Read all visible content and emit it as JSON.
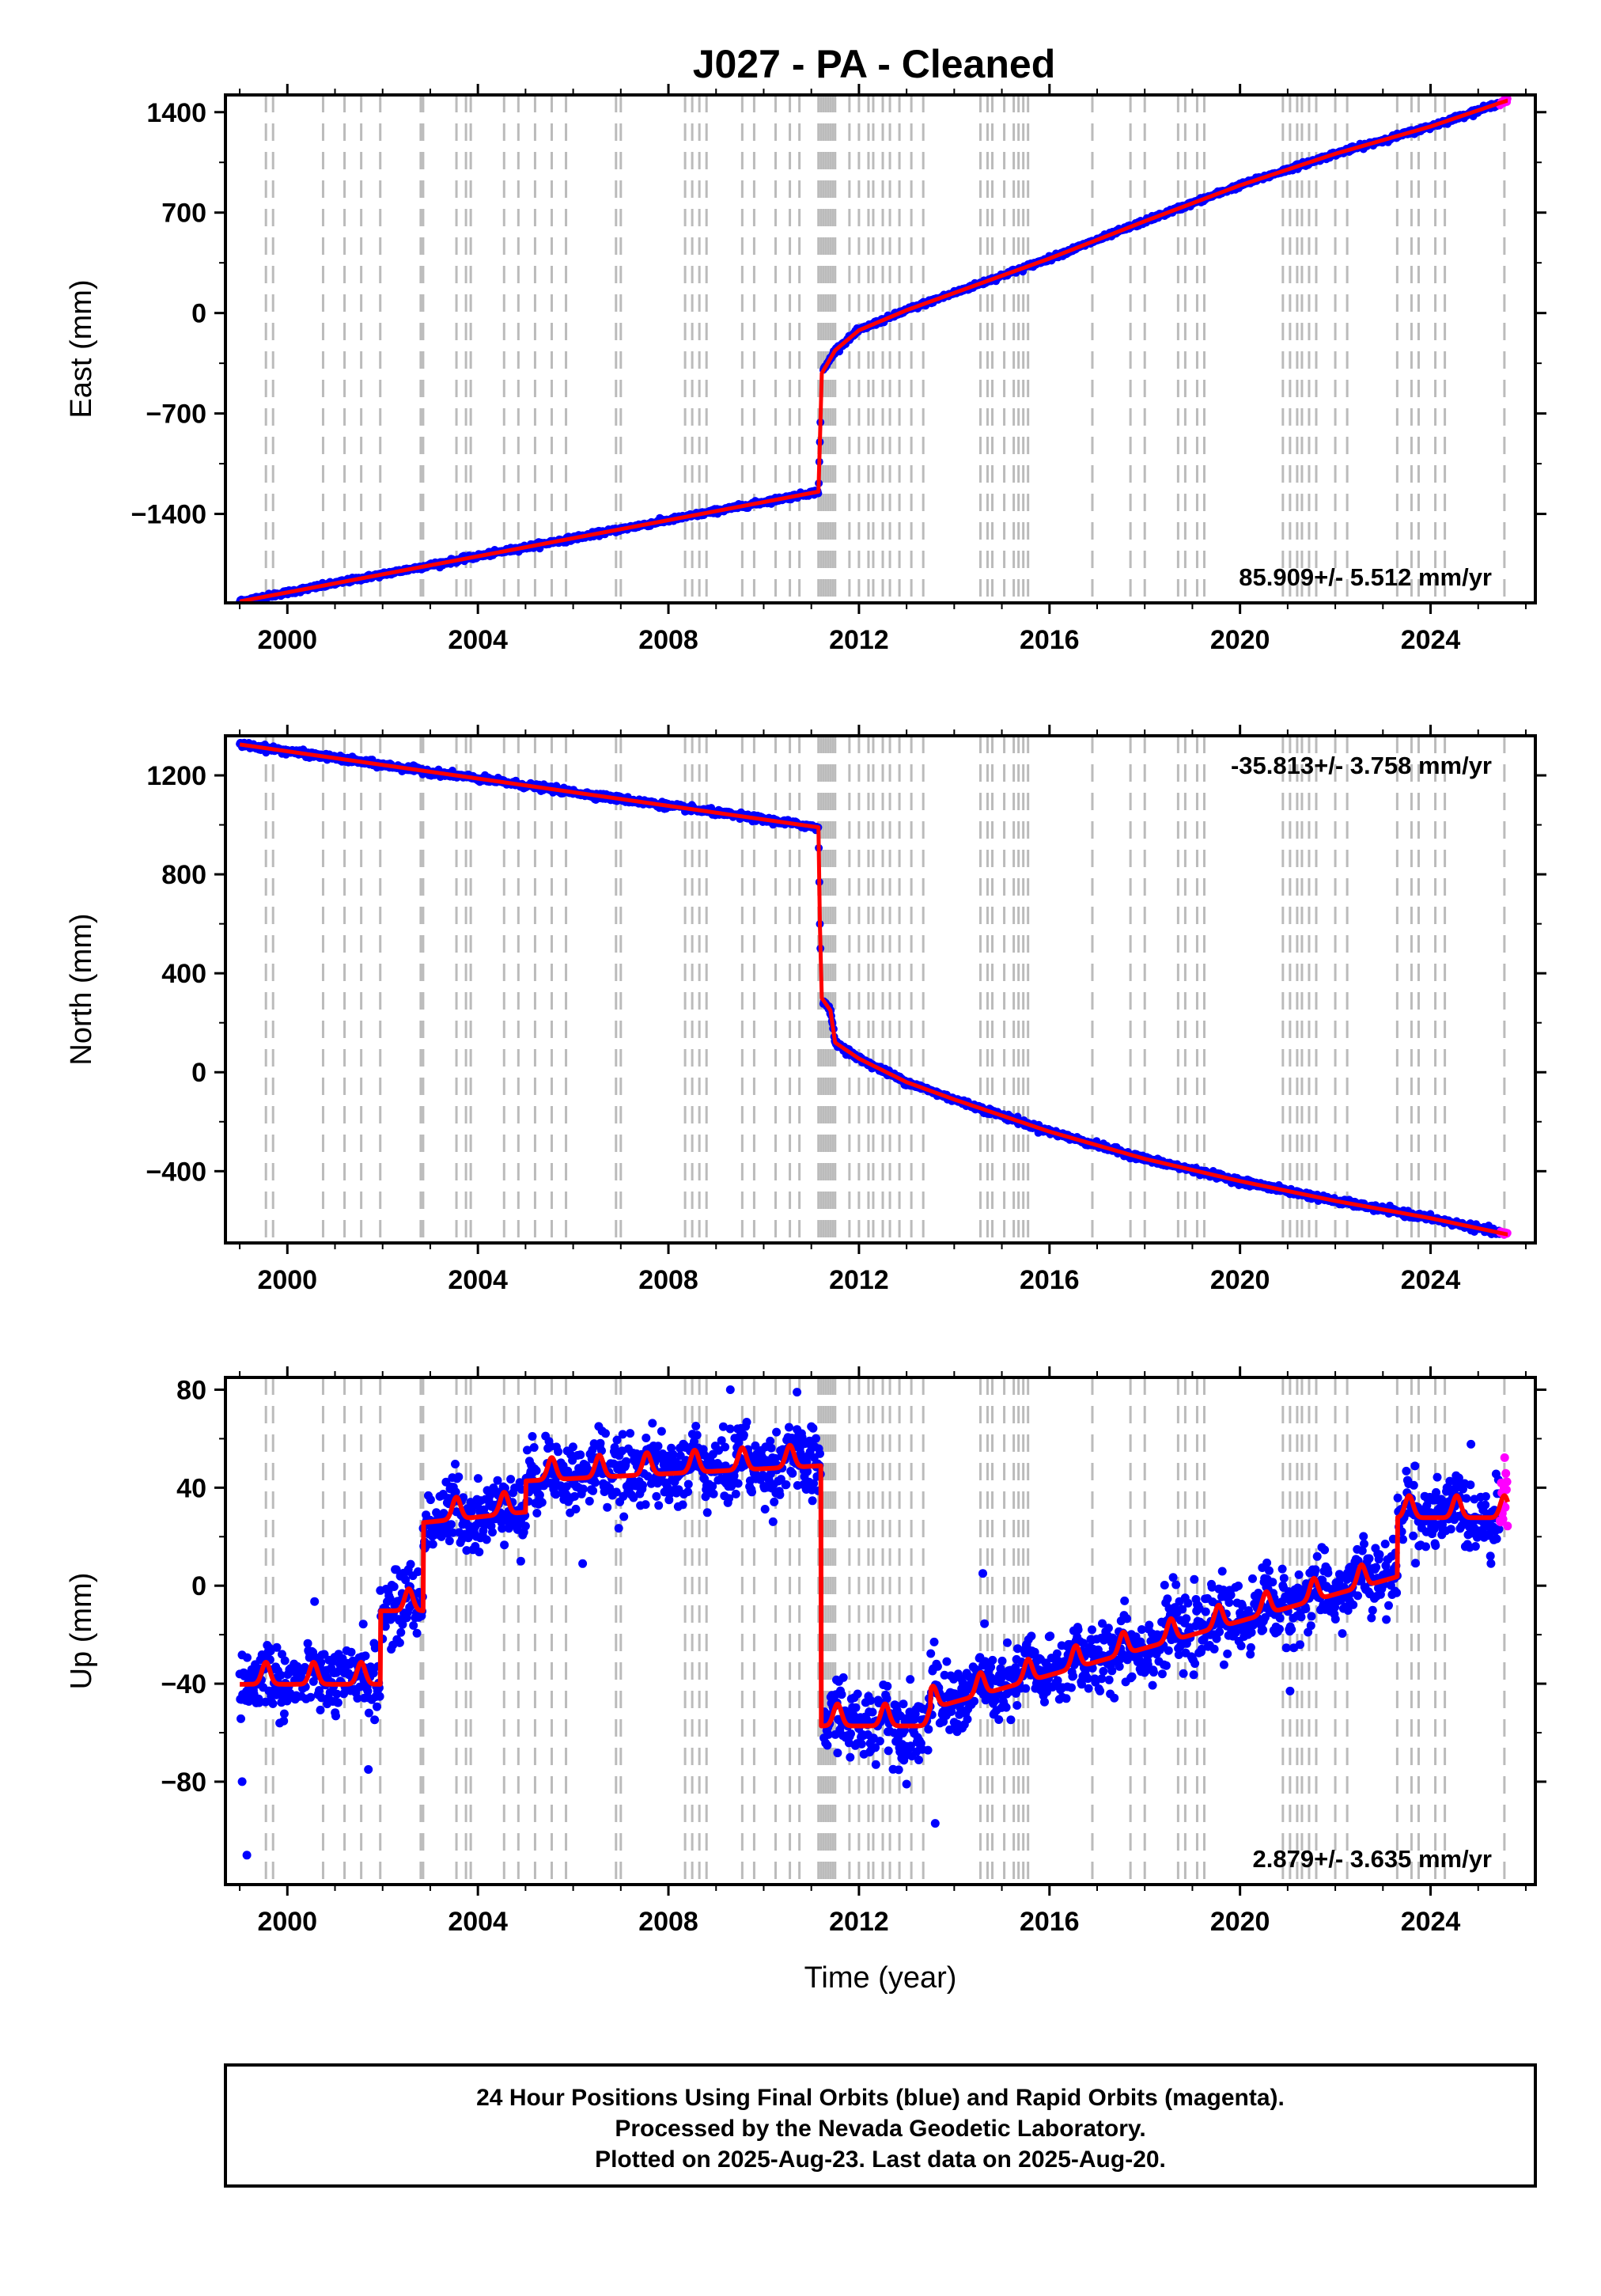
{
  "title": "J027  - PA - Cleaned",
  "colors": {
    "final_orbits": "#0000ff",
    "rapid_orbits": "#ff00ff",
    "model_fit": "#ff0000",
    "event_lines": "#bbbbbb",
    "frame": "#000000"
  },
  "chart_data": [
    {
      "type": "scatter",
      "panel": "east",
      "ylabel": "East (mm)",
      "xlabel": "",
      "xlim": [
        1998.7,
        2026.2
      ],
      "ylim": [
        -2020,
        1520
      ],
      "yticks": [
        1400,
        700,
        0,
        -700,
        -1400
      ],
      "ytick_labels": [
        "1400",
        "700",
        "0",
        "−700",
        "−1400"
      ],
      "xticks": [
        2000,
        2004,
        2008,
        2012,
        2016,
        2020,
        2024
      ],
      "rate_label": "85.909+/- 5.512 mm/yr",
      "rate_label_position": "bottom-right",
      "fit_nodes": [
        [
          1999.0,
          -2010
        ],
        [
          2011.15,
          -1245
        ],
        [
          2011.18,
          -900
        ],
        [
          2011.22,
          -420
        ],
        [
          2011.5,
          -260
        ],
        [
          2012.0,
          -120
        ],
        [
          2013.0,
          20
        ],
        [
          2014.0,
          140
        ],
        [
          2016.0,
          380
        ],
        [
          2018.0,
          640
        ],
        [
          2020.0,
          890
        ],
        [
          2022.0,
          1110
        ],
        [
          2024.0,
          1300
        ],
        [
          2025.6,
          1480
        ]
      ],
      "noise_mm": 8
    },
    {
      "type": "scatter",
      "panel": "north",
      "ylabel": "North (mm)",
      "xlabel": "",
      "xlim": [
        1998.7,
        2026.2
      ],
      "ylim": [
        -690,
        1360
      ],
      "yticks": [
        1200,
        800,
        400,
        0,
        -400
      ],
      "ytick_labels": [
        "1200",
        "800",
        "400",
        "0",
        "−400"
      ],
      "xticks": [
        2000,
        2004,
        2008,
        2012,
        2016,
        2020,
        2024
      ],
      "rate_label": "-35.813+/- 3.758 mm/yr",
      "rate_label_position": "top-right",
      "fit_nodes": [
        [
          1999.0,
          1325
        ],
        [
          2011.15,
          990
        ],
        [
          2011.18,
          600
        ],
        [
          2011.22,
          300
        ],
        [
          2011.4,
          250
        ],
        [
          2011.5,
          120
        ],
        [
          2012.0,
          55
        ],
        [
          2013.0,
          -40
        ],
        [
          2014.0,
          -110
        ],
        [
          2016.0,
          -240
        ],
        [
          2018.0,
          -350
        ],
        [
          2020.0,
          -440
        ],
        [
          2022.0,
          -520
        ],
        [
          2024.0,
          -590
        ],
        [
          2025.6,
          -655
        ]
      ],
      "noise_mm": 6
    },
    {
      "type": "scatter",
      "panel": "up",
      "ylabel": "Up (mm)",
      "xlabel": "Time (year)",
      "xlim": [
        1998.7,
        2026.2
      ],
      "ylim": [
        -122,
        85
      ],
      "yticks": [
        80,
        40,
        0,
        -40,
        -80
      ],
      "ytick_labels": [
        "80",
        "40",
        "0",
        "−40",
        "−80"
      ],
      "xticks": [
        2000,
        2004,
        2008,
        2012,
        2016,
        2020,
        2024
      ],
      "rate_label": "2.879+/- 3.635 mm/yr",
      "rate_label_position": "bottom-right",
      "segments": [
        {
          "start": 1999.0,
          "end": 2001.95,
          "base": -38,
          "trend": 0
        },
        {
          "start": 2001.95,
          "end": 2002.85,
          "base": -8,
          "trend": 0
        },
        {
          "start": 2002.85,
          "end": 2005.0,
          "base": 28,
          "trend": 2
        },
        {
          "start": 2005.0,
          "end": 2011.2,
          "base": 45,
          "trend": 1
        },
        {
          "start": 2011.2,
          "end": 2013.5,
          "base": -55,
          "trend": 0
        },
        {
          "start": 2013.5,
          "end": 2023.3,
          "base": -48,
          "trend": 5.5
        },
        {
          "start": 2023.3,
          "end": 2025.6,
          "base": 30,
          "trend": 0
        }
      ],
      "seasonal_amplitude_mm": 9,
      "noise_mm": 7,
      "outliers": [
        [
          1999.15,
          -110
        ],
        [
          1999.05,
          -80
        ],
        [
          2013.6,
          -97
        ],
        [
          2013.0,
          -81
        ],
        [
          2001.7,
          -75
        ],
        [
          2009.3,
          80
        ],
        [
          2010.7,
          79
        ],
        [
          2006.2,
          9
        ],
        [
          2021.05,
          -43
        ],
        [
          2014.6,
          5
        ],
        [
          2004.9,
          10
        ]
      ]
    }
  ],
  "event_lines": [
    1999.55,
    1999.7,
    2000.75,
    2001.2,
    2001.55,
    2001.95,
    2002.8,
    2002.85,
    2003.55,
    2003.75,
    2003.85,
    2004.55,
    2004.85,
    2005.2,
    2005.55,
    2005.85,
    2006.9,
    2007.0,
    2008.35,
    2008.5,
    2008.65,
    2008.8,
    2009.55,
    2009.8,
    2010.25,
    2010.55,
    2010.75,
    2011.15,
    2011.2,
    2011.25,
    2011.3,
    2011.35,
    2011.4,
    2011.45,
    2011.5,
    2011.8,
    2012.0,
    2012.2,
    2012.3,
    2012.5,
    2012.65,
    2012.85,
    2013.1,
    2013.35,
    2014.55,
    2014.7,
    2014.8,
    2015.05,
    2015.25,
    2015.35,
    2015.45,
    2015.55,
    2016.9,
    2017.7,
    2018.0,
    2018.7,
    2018.85,
    2019.1,
    2019.25,
    2020.9,
    2021.05,
    2021.2,
    2021.3,
    2021.45,
    2021.6,
    2022.0,
    2022.25,
    2023.3,
    2023.6,
    2023.75,
    2024.1,
    2024.3,
    2025.55
  ],
  "footer": {
    "line1": "24 Hour Positions Using Final Orbits (blue) and Rapid Orbits (magenta).",
    "line2": "Processed by the Nevada Geodetic Laboratory.",
    "line3": "Plotted on 2025-Aug-23. Last data on 2025-Aug-20."
  }
}
